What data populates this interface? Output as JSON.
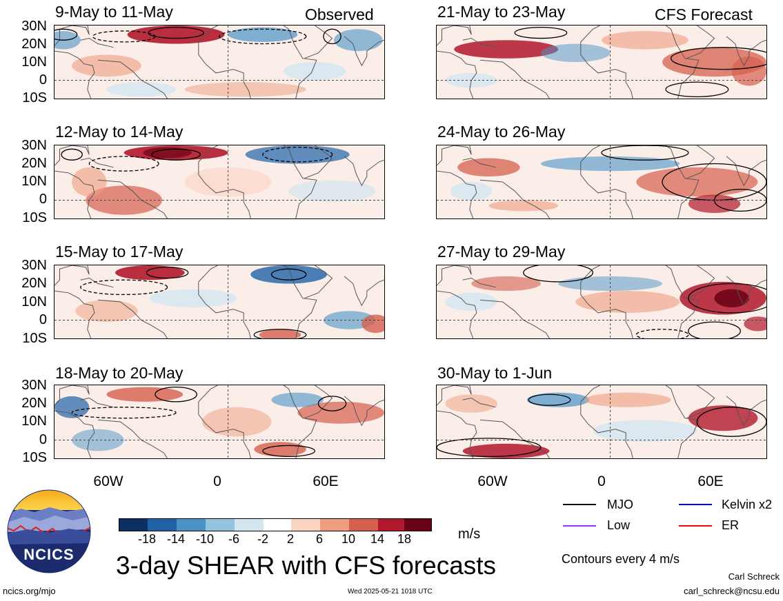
{
  "left_label": "Observed",
  "right_label": "CFS Forecast",
  "observed_panels": [
    {
      "dates": "9-May to 11-May"
    },
    {
      "dates": "12-May to 14-May"
    },
    {
      "dates": "15-May to 17-May"
    },
    {
      "dates": "18-May to 20-May"
    }
  ],
  "forecast_panels": [
    {
      "dates": "21-May to 23-May"
    },
    {
      "dates": "24-May to 26-May"
    },
    {
      "dates": "27-May to 29-May"
    },
    {
      "dates": "30-May to 1-Jun"
    }
  ],
  "lat_labels": [
    "30N",
    "20N",
    "10N",
    "0",
    "10S"
  ],
  "lon_labels": [
    "60W",
    "0",
    "60E"
  ],
  "colorbar": {
    "ticks": [
      "-18",
      "-14",
      "-10",
      "-6",
      "-2",
      "2",
      "6",
      "10",
      "14",
      "18"
    ],
    "colors": [
      "#0b2f63",
      "#1f62a8",
      "#4a93c7",
      "#93c4de",
      "#d3e6f0",
      "#ffffff",
      "#fbd4c1",
      "#f09c7e",
      "#d65f4e",
      "#b0182b",
      "#6b0116"
    ],
    "units": "m/s"
  },
  "legend": [
    {
      "label": "MJO",
      "color": "#000000"
    },
    {
      "label": "Kelvin x2",
      "color": "#0000ff"
    },
    {
      "label": "Low",
      "color": "#9b30ff"
    },
    {
      "label": "ER",
      "color": "#ff0000"
    }
  ],
  "contour_note": "Contours every 4 m/s",
  "title": "3-day SHEAR with CFS forecasts",
  "logo_text": "NCICS",
  "url": "ncics.org/mjo",
  "timestamp": "Wed 2025-05-21 1018 UTC",
  "author": "Carl Schreck",
  "email": "carl_schreck@ncsu.edu"
}
